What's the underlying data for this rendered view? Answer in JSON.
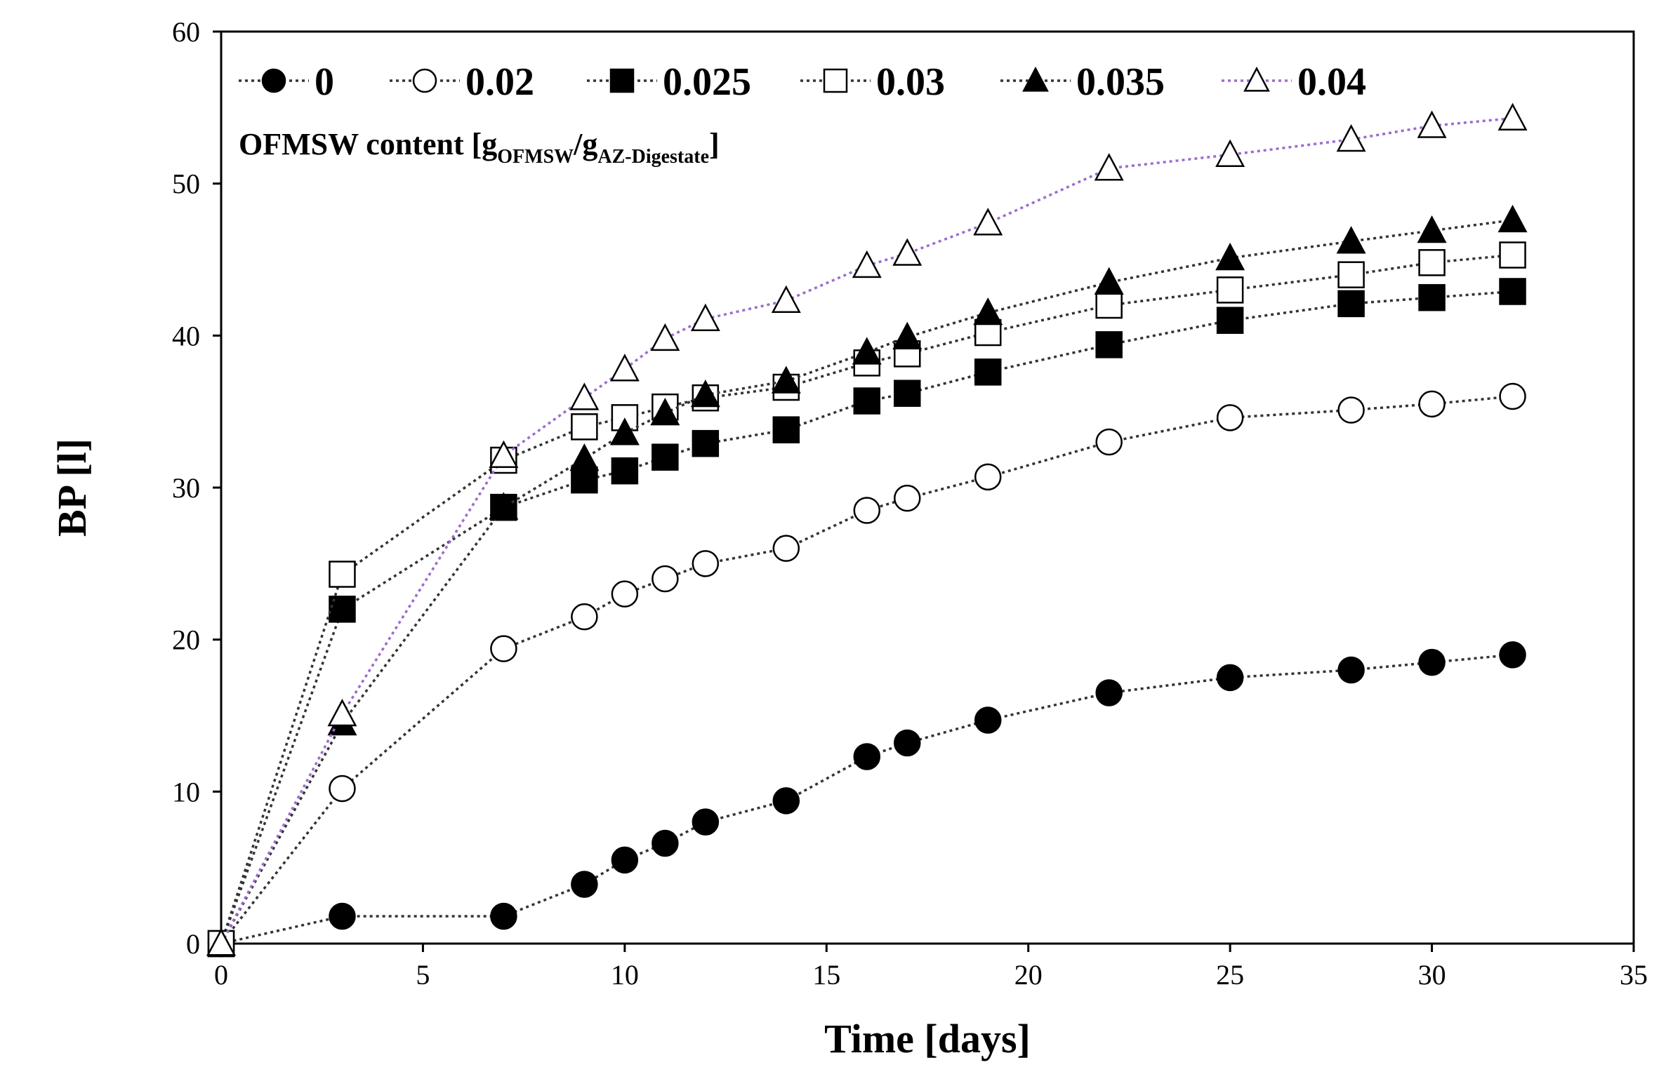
{
  "chart_data": {
    "type": "line",
    "title": "",
    "xlabel": "Time [days]",
    "ylabel": "BP [l]",
    "xlim": [
      0,
      35
    ],
    "ylim": [
      0,
      60
    ],
    "xticks": [
      0,
      5,
      10,
      15,
      20,
      25,
      30,
      35
    ],
    "yticks": [
      0,
      10,
      20,
      30,
      40,
      50,
      60
    ],
    "grid": false,
    "legend": {
      "placement": "top-left",
      "title_main": "OFMSW content [g",
      "title_sub1": "OFMSW",
      "title_mid": "/g",
      "title_sub2": "AZ-Digestate",
      "title_end": "]"
    },
    "x": [
      0,
      3,
      7,
      9,
      10,
      11,
      12,
      14,
      16,
      17,
      19,
      22,
      25,
      28,
      30,
      32
    ],
    "series": [
      {
        "name": "0",
        "marker": "circle",
        "filled": true,
        "color": "#333333",
        "values": [
          0,
          1.8,
          1.8,
          3.9,
          5.5,
          6.6,
          8.0,
          9.4,
          12.3,
          13.2,
          14.7,
          16.5,
          17.5,
          18.0,
          18.5,
          19.0
        ]
      },
      {
        "name": "0.02",
        "marker": "circle",
        "filled": false,
        "color": "#333333",
        "values": [
          0,
          10.2,
          19.4,
          21.5,
          23.0,
          24.0,
          25.0,
          26.0,
          28.5,
          29.3,
          30.7,
          33.0,
          34.6,
          35.1,
          35.5,
          36.0
        ]
      },
      {
        "name": "0.025",
        "marker": "square",
        "filled": true,
        "color": "#333333",
        "values": [
          0,
          22.0,
          28.7,
          30.5,
          31.1,
          32.0,
          32.9,
          33.8,
          35.7,
          36.2,
          37.6,
          39.4,
          41.0,
          42.1,
          42.5,
          42.9
        ]
      },
      {
        "name": "0.03",
        "marker": "square",
        "filled": false,
        "color": "#333333",
        "values": [
          0,
          24.3,
          31.8,
          34.0,
          34.6,
          35.3,
          35.9,
          36.6,
          38.2,
          38.8,
          40.2,
          42.0,
          43.0,
          44.0,
          44.8,
          45.3
        ]
      },
      {
        "name": "0.035",
        "marker": "triangle",
        "filled": true,
        "color": "#333333",
        "values": [
          0,
          14.5,
          28.7,
          31.9,
          33.6,
          34.9,
          36.1,
          37.0,
          38.9,
          39.9,
          41.5,
          43.5,
          45.1,
          46.2,
          46.9,
          47.6
        ]
      },
      {
        "name": "0.04",
        "marker": "triangle",
        "filled": false,
        "color": "#9b6ccf",
        "values": [
          0,
          15.1,
          32.1,
          35.9,
          37.8,
          39.8,
          41.1,
          42.3,
          44.6,
          45.4,
          47.4,
          51.0,
          51.9,
          52.9,
          53.8,
          54.3
        ]
      }
    ]
  }
}
